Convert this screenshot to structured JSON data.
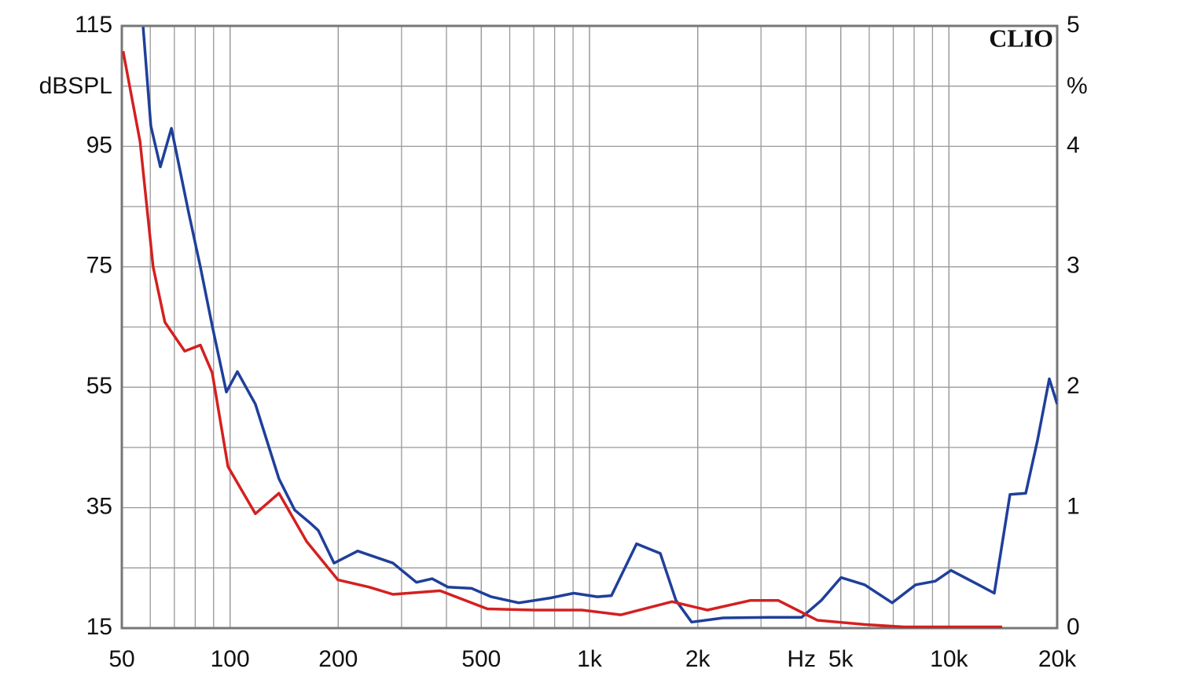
{
  "chart_data": {
    "type": "line",
    "title": "CLIO",
    "xscale": "log",
    "xlim": [
      50,
      20000
    ],
    "xticks": [
      50,
      100,
      200,
      500,
      {
        "value": 1000,
        "label": "1k"
      },
      {
        "value": 2000,
        "label": "2k"
      },
      {
        "value": 5000,
        "label": "5k"
      },
      {
        "value": 10000,
        "label": "10k"
      },
      {
        "value": 20000,
        "label": "20k"
      }
    ],
    "xlabel": "Hz",
    "ylabel": "dBSPL",
    "ylim": [
      15,
      115
    ],
    "yticks": [
      15,
      35,
      55,
      75,
      95,
      115
    ],
    "y2label": "%",
    "y2lim": [
      0,
      5
    ],
    "y2ticks": [
      0,
      1,
      2,
      3,
      4,
      5
    ],
    "grid": true,
    "series": [
      {
        "name": "Blue",
        "color": "#1f3f9a",
        "axis": "y2",
        "x": [
          57.3,
          60.2,
          64,
          68.7,
          76.7,
          82.7,
          89.2,
          97.7,
          104.8,
          117.6,
          136.8,
          151.4,
          167.4,
          176,
          194.7,
          226.5,
          284,
          330,
          365,
          404,
          470,
          533,
          636,
          778,
          904,
          1052,
          1151,
          1352,
          1574,
          1740,
          1923,
          2354,
          3183,
          3893,
          4415,
          5008,
          5827,
          6951,
          8080,
          9160,
          10131,
          12088,
          13366,
          14783,
          16349,
          17634,
          19017,
          20000
        ],
        "values": [
          4.99,
          4.17,
          3.83,
          4.15,
          3.45,
          3.0,
          2.51,
          1.96,
          2.13,
          1.86,
          1.24,
          0.98,
          0.87,
          0.81,
          0.54,
          0.64,
          0.54,
          0.38,
          0.41,
          0.34,
          0.33,
          0.26,
          0.21,
          0.25,
          0.29,
          0.26,
          0.27,
          0.7,
          0.62,
          0.23,
          0.05,
          0.085,
          0.09,
          0.09,
          0.23,
          0.42,
          0.36,
          0.21,
          0.36,
          0.39,
          0.48,
          0.36,
          0.29,
          1.11,
          1.12,
          1.56,
          2.07,
          1.86
        ]
      },
      {
        "name": "Red",
        "color": "#d42020",
        "axis": "y2",
        "x": [
          50.4,
          56.2,
          61.1,
          65.9,
          74.8,
          82.7,
          89.2,
          98.7,
          117.6,
          136.8,
          163.3,
          199.7,
          244,
          284,
          384,
          520,
          703,
          952,
          1223,
          1697,
          2128,
          2807,
          3348,
          4306,
          5827,
          7492,
          14058
        ],
        "values": [
          4.79,
          4.04,
          3.0,
          2.54,
          2.3,
          2.35,
          2.12,
          1.34,
          0.95,
          1.12,
          0.72,
          0.4,
          0.34,
          0.28,
          0.31,
          0.16,
          0.15,
          0.15,
          0.11,
          0.22,
          0.15,
          0.23,
          0.23,
          0.065,
          0.03,
          0.01,
          0.01
        ]
      }
    ]
  }
}
